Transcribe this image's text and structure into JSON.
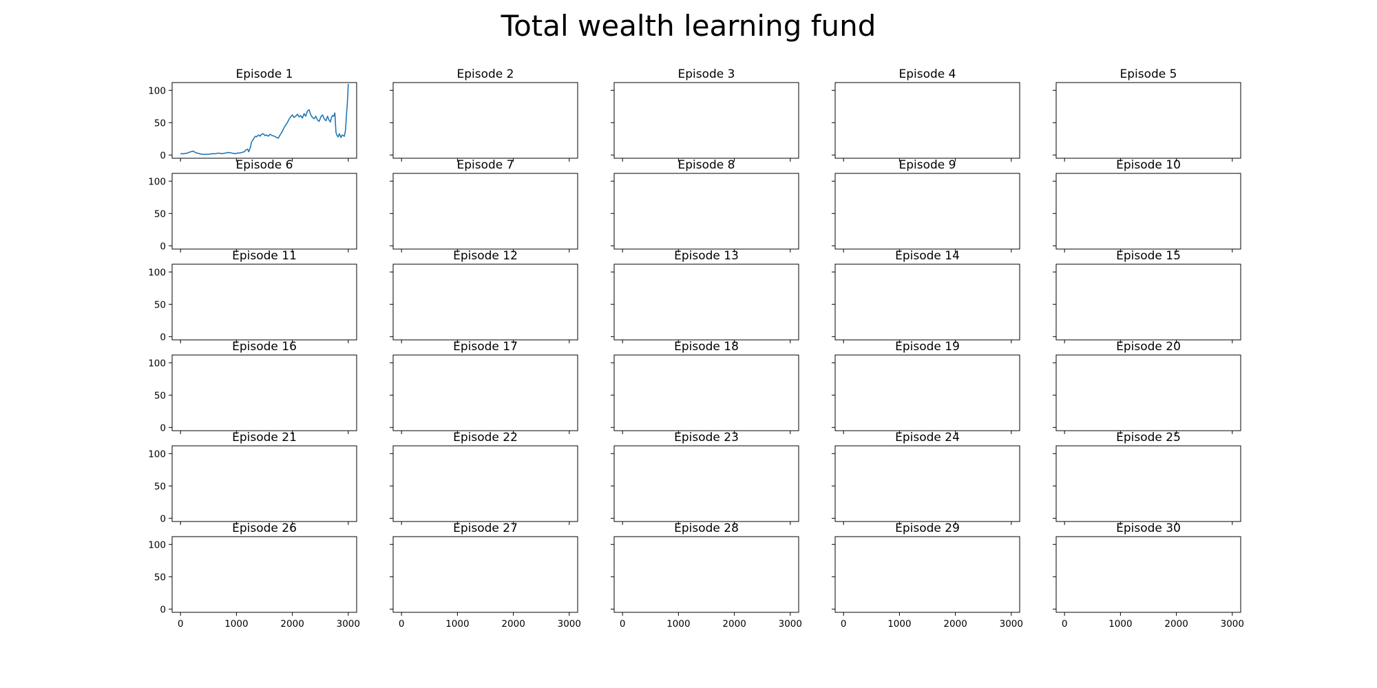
{
  "figure": {
    "title": "Total wealth learning fund"
  },
  "chart_data": {
    "type": "line",
    "title": "Total wealth learning fund",
    "grid": false,
    "rows": 6,
    "cols": 5,
    "sharex": true,
    "sharey": true,
    "xlim": [
      -150,
      3150
    ],
    "ylim": [
      -5,
      112
    ],
    "x_ticks": [
      0,
      1000,
      2000,
      3000
    ],
    "y_ticks": [
      0,
      50,
      100
    ],
    "line_color": "#1f77b4",
    "panels": [
      {
        "title": "Episode 1",
        "x": [
          0,
          60,
          120,
          180,
          230,
          260,
          300,
          340,
          400,
          450,
          500,
          560,
          620,
          680,
          740,
          800,
          860,
          920,
          980,
          1020,
          1060,
          1100,
          1140,
          1170,
          1200,
          1220,
          1250,
          1270,
          1300,
          1320,
          1340,
          1360,
          1380,
          1400,
          1420,
          1450,
          1480,
          1510,
          1540,
          1570,
          1600,
          1640,
          1680,
          1720,
          1750,
          1780,
          1810,
          1850,
          1880,
          1910,
          1940,
          1970,
          2000,
          2030,
          2060,
          2090,
          2120,
          2150,
          2180,
          2210,
          2240,
          2270,
          2300,
          2330,
          2360,
          2390,
          2420,
          2450,
          2480,
          2510,
          2540,
          2570,
          2600,
          2630,
          2650,
          2680,
          2700,
          2720,
          2740,
          2760,
          2780,
          2800,
          2820,
          2840,
          2870,
          2890,
          2910,
          2930,
          2950,
          2960,
          2970,
          2980,
          2990,
          3000
        ],
        "y": [
          2,
          2,
          3,
          5,
          6,
          4,
          3,
          2,
          1,
          1,
          1,
          2,
          2,
          3,
          2,
          3,
          4,
          3,
          2,
          3,
          3,
          4,
          5,
          8,
          9,
          5,
          12,
          20,
          24,
          27,
          29,
          28,
          30,
          31,
          29,
          32,
          33,
          30,
          31,
          29,
          32,
          30,
          29,
          27,
          26,
          31,
          35,
          42,
          46,
          50,
          55,
          59,
          62,
          58,
          60,
          63,
          59,
          61,
          57,
          64,
          60,
          68,
          70,
          62,
          58,
          56,
          60,
          54,
          52,
          59,
          62,
          56,
          53,
          60,
          55,
          51,
          58,
          61,
          60,
          65,
          35,
          30,
          28,
          33,
          27,
          31,
          30,
          29,
          38,
          50,
          65,
          75,
          90,
          110
        ]
      },
      {
        "title": "Episode 2",
        "x": [],
        "y": []
      },
      {
        "title": "Episode 3",
        "x": [],
        "y": []
      },
      {
        "title": "Episode 4",
        "x": [],
        "y": []
      },
      {
        "title": "Episode 5",
        "x": [],
        "y": []
      },
      {
        "title": "Episode 6",
        "x": [],
        "y": []
      },
      {
        "title": "Episode 7",
        "x": [],
        "y": []
      },
      {
        "title": "Episode 8",
        "x": [],
        "y": []
      },
      {
        "title": "Episode 9",
        "x": [],
        "y": []
      },
      {
        "title": "Episode 10",
        "x": [],
        "y": []
      },
      {
        "title": "Episode 11",
        "x": [],
        "y": []
      },
      {
        "title": "Episode 12",
        "x": [],
        "y": []
      },
      {
        "title": "Episode 13",
        "x": [],
        "y": []
      },
      {
        "title": "Episode 14",
        "x": [],
        "y": []
      },
      {
        "title": "Episode 15",
        "x": [],
        "y": []
      },
      {
        "title": "Episode 16",
        "x": [],
        "y": []
      },
      {
        "title": "Episode 17",
        "x": [],
        "y": []
      },
      {
        "title": "Episode 18",
        "x": [],
        "y": []
      },
      {
        "title": "Episode 19",
        "x": [],
        "y": []
      },
      {
        "title": "Episode 20",
        "x": [],
        "y": []
      },
      {
        "title": "Episode 21",
        "x": [],
        "y": []
      },
      {
        "title": "Episode 22",
        "x": [],
        "y": []
      },
      {
        "title": "Episode 23",
        "x": [],
        "y": []
      },
      {
        "title": "Episode 24",
        "x": [],
        "y": []
      },
      {
        "title": "Episode 25",
        "x": [],
        "y": []
      },
      {
        "title": "Episode 26",
        "x": [],
        "y": []
      },
      {
        "title": "Episode 27",
        "x": [],
        "y": []
      },
      {
        "title": "Episode 28",
        "x": [],
        "y": []
      },
      {
        "title": "Episode 29",
        "x": [],
        "y": []
      },
      {
        "title": "Episode 30",
        "x": [],
        "y": []
      }
    ]
  }
}
